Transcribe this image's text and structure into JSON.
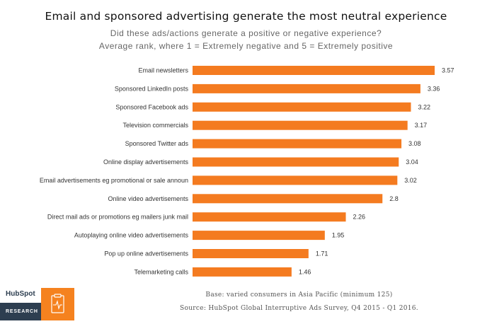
{
  "title": "Email and sponsored advertising generate the most neutral experience",
  "subtitle": "Did these ads/actions generate a positive or negative experience?",
  "subtitle2": "Average rank, where 1 = Extremely negative and 5 = Extremely positive",
  "footer": {
    "base": "Base: varied consumers in Asia Pacific (minimum 125)",
    "source": "Source: HubSpot Global Interruptive Ads Survey, Q4 2015 - Q1 2016."
  },
  "branding": {
    "logo": "HubSpot",
    "section": "RESEARCH",
    "icon": "clipboard-pulse-icon"
  },
  "colors": {
    "bar": "#f47b20",
    "research_bg": "#2d3e50",
    "icon_bg": "#f5821f"
  },
  "chart_data": {
    "type": "bar",
    "orientation": "horizontal",
    "categories": [
      "Email newsletters",
      "Sponsored LinkedIn posts",
      "Sponsored Facebook ads",
      "Television commercials",
      "Sponsored Twitter ads",
      "Online display advertisements",
      "Email advertisements eg promotional or sale announ",
      "Online video advertisements",
      "Direct mail ads or promotions eg mailers junk mail",
      "Autoplaying online video advertisements",
      "Pop up online advertisements",
      "Telemarketing calls"
    ],
    "values": [
      3.57,
      3.36,
      3.22,
      3.17,
      3.08,
      3.04,
      3.02,
      2.8,
      2.26,
      1.95,
      1.71,
      1.46
    ],
    "value_labels": [
      "3.57",
      "3.36",
      "3.22",
      "3.17",
      "3.08",
      "3.04",
      "3.02",
      "2.8",
      "2.26",
      "1.95",
      "1.71",
      "1.46"
    ],
    "xlim": [
      0,
      3.57
    ],
    "grid": false,
    "legend": "none"
  }
}
